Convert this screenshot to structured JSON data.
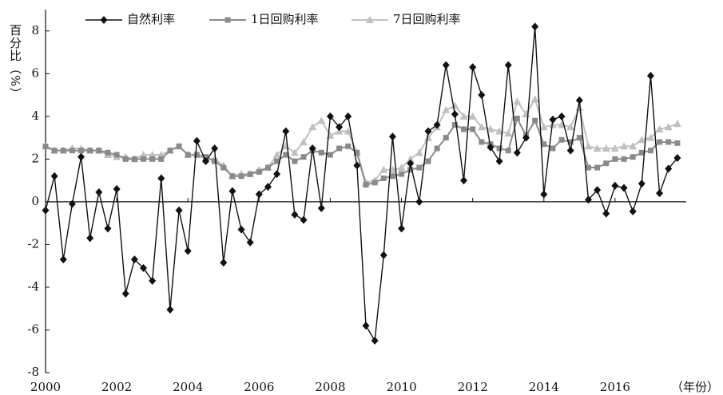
{
  "chart_data": {
    "type": "line",
    "y_label": "百分比（%）",
    "x_label": "（年份）",
    "x": [
      2000,
      2000.25,
      2000.5,
      2000.75,
      2001,
      2001.25,
      2001.5,
      2001.75,
      2002,
      2002.25,
      2002.5,
      2002.75,
      2003,
      2003.25,
      2003.5,
      2003.75,
      2004,
      2004.25,
      2004.5,
      2004.75,
      2005,
      2005.25,
      2005.5,
      2005.75,
      2006,
      2006.25,
      2006.5,
      2006.75,
      2007,
      2007.25,
      2007.5,
      2007.75,
      2008,
      2008.25,
      2008.5,
      2008.75,
      2009,
      2009.25,
      2009.5,
      2009.75,
      2010,
      2010.25,
      2010.5,
      2010.75,
      2011,
      2011.25,
      2011.5,
      2011.75,
      2012,
      2012.25,
      2012.5,
      2012.75,
      2013,
      2013.25,
      2013.5,
      2013.75,
      2014,
      2014.25,
      2014.5,
      2014.75,
      2015,
      2015.25,
      2015.5,
      2015.75,
      2016,
      2016.25,
      2016.5,
      2016.75,
      2017,
      2017.25,
      2017.5,
      2017.75
    ],
    "series": [
      {
        "name": "自然利率",
        "color": "#111111",
        "marker": "diamond",
        "values": [
          -0.4,
          1.2,
          -2.7,
          -0.1,
          2.1,
          -1.7,
          0.45,
          -1.25,
          0.6,
          -4.3,
          -2.7,
          -3.1,
          -3.7,
          1.1,
          -5.05,
          -0.4,
          -2.3,
          2.85,
          1.9,
          2.5,
          -2.85,
          0.5,
          -1.3,
          -1.9,
          0.35,
          0.7,
          1.3,
          3.3,
          -0.6,
          -0.85,
          2.5,
          -0.3,
          4.0,
          3.5,
          4.0,
          1.7,
          -5.8,
          -6.5,
          -2.5,
          3.05,
          -1.25,
          1.8,
          0.0,
          3.3,
          3.6,
          6.4,
          4.1,
          1.0,
          6.3,
          5.0,
          2.55,
          1.9,
          6.4,
          2.3,
          3.0,
          8.2,
          0.35,
          3.85,
          4.0,
          2.4,
          4.75,
          0.1,
          0.55,
          -0.55,
          0.75,
          0.65,
          -0.45,
          0.85,
          5.9,
          0.4,
          1.55,
          2.05
        ]
      },
      {
        "name": "1日回购利率",
        "color": "#8a8a8a",
        "marker": "square",
        "values": [
          2.6,
          2.4,
          2.4,
          2.4,
          2.4,
          2.4,
          2.4,
          2.3,
          2.2,
          2.0,
          2.0,
          2.0,
          2.0,
          2.0,
          2.4,
          2.6,
          2.2,
          2.2,
          2.1,
          1.9,
          1.6,
          1.2,
          1.2,
          1.3,
          1.4,
          1.6,
          1.9,
          2.2,
          1.9,
          2.1,
          2.4,
          2.3,
          2.2,
          2.5,
          2.6,
          2.3,
          0.8,
          0.9,
          1.1,
          1.2,
          1.3,
          1.5,
          1.6,
          1.9,
          2.5,
          3.0,
          3.6,
          3.4,
          3.4,
          2.8,
          2.7,
          2.5,
          2.4,
          3.9,
          3.1,
          3.8,
          2.7,
          2.5,
          2.9,
          2.8,
          3.0,
          1.6,
          1.6,
          1.8,
          2.0,
          2.0,
          2.1,
          2.3,
          2.4,
          2.8,
          2.8,
          2.75
        ]
      },
      {
        "name": "7日回购利率",
        "color": "#c0c0c0",
        "marker": "triangle",
        "values": [
          2.6,
          2.4,
          2.4,
          2.5,
          2.5,
          2.4,
          2.4,
          2.2,
          2.1,
          2.1,
          2.0,
          2.2,
          2.2,
          2.2,
          2.4,
          2.6,
          2.2,
          2.2,
          2.0,
          2.0,
          1.7,
          1.2,
          1.3,
          1.3,
          1.5,
          1.6,
          2.2,
          2.6,
          2.3,
          2.8,
          3.5,
          3.8,
          3.1,
          3.3,
          3.3,
          2.3,
          0.9,
          1.0,
          1.5,
          1.5,
          1.6,
          2.0,
          2.3,
          3.0,
          3.5,
          4.3,
          4.5,
          4.0,
          4.0,
          3.5,
          3.4,
          3.3,
          3.2,
          4.7,
          4.1,
          4.8,
          3.5,
          3.6,
          3.6,
          3.5,
          4.4,
          2.6,
          2.5,
          2.5,
          2.5,
          2.6,
          2.6,
          2.9,
          3.0,
          3.4,
          3.5,
          3.65
        ]
      }
    ],
    "xlim": [
      2000,
      2018
    ],
    "xticks": [
      2000,
      2002,
      2004,
      2006,
      2008,
      2010,
      2012,
      2014,
      2016
    ],
    "ylim": [
      -8,
      9
    ],
    "yticks": [
      -8,
      -6,
      -4,
      -2,
      0,
      2,
      4,
      6,
      8
    ],
    "grid": false,
    "legend": "top"
  }
}
